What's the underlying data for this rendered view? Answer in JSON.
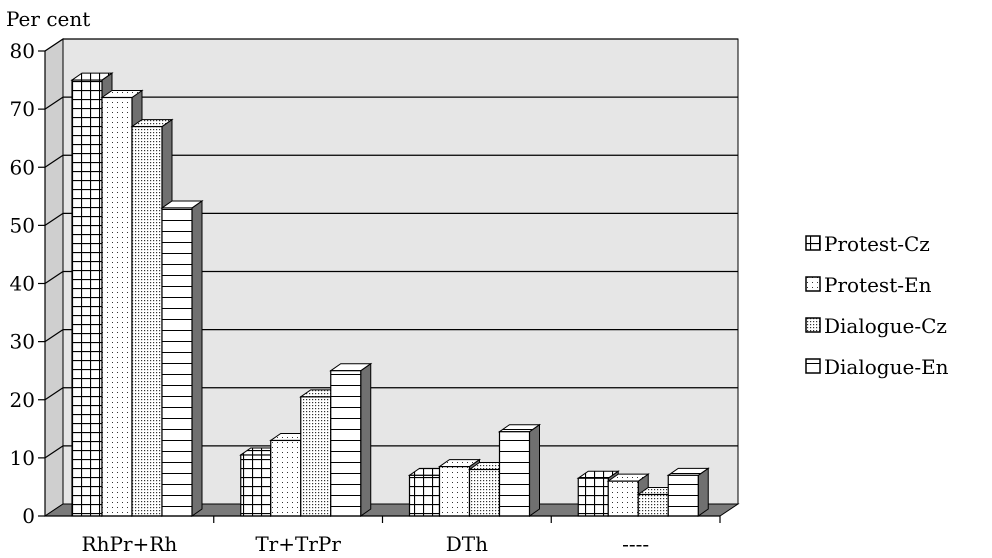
{
  "chart_data": {
    "type": "bar",
    "title": "",
    "ylabel": "Per cent",
    "xlabel": "",
    "categories": [
      "RhPr+Rh",
      "Tr+TrPr",
      "DTh",
      "----"
    ],
    "series": [
      {
        "name": "Protest-Cz",
        "values": [
          75,
          10.5,
          7,
          6.5
        ]
      },
      {
        "name": "Protest-En",
        "values": [
          72,
          13,
          8.5,
          6
        ]
      },
      {
        "name": "Dialogue-Cz",
        "values": [
          67,
          20.5,
          8,
          3.7
        ]
      },
      {
        "name": "Dialogue-En",
        "values": [
          53,
          25,
          14.5,
          7
        ]
      }
    ],
    "ylim": [
      0,
      80
    ],
    "yticks": [
      "0",
      "10",
      "20",
      "30",
      "40",
      "50",
      "60",
      "70",
      "80"
    ],
    "grid": true,
    "legend_position": "right",
    "colors": {
      "wall": "#e6e6e6",
      "floor": "#7a7a7a",
      "side": "#707070",
      "bar": "#ffffff"
    },
    "patterns": [
      "grid",
      "dots-sparse",
      "dots-dense",
      "horizontal-lines"
    ]
  }
}
